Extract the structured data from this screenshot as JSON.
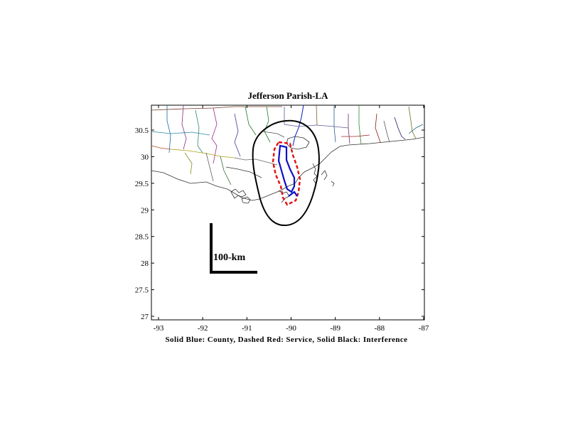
{
  "map": {
    "title": "Jefferson Parish-LA",
    "caption": "Solid Blue: County, Dashed Red: Service, Solid Black: Interference",
    "scale_label": "100-km",
    "x_ticks": [
      "-93",
      "-92",
      "-91",
      "-90",
      "-89",
      "-88",
      "-87"
    ],
    "y_ticks": [
      "30.5",
      "30",
      "29.5",
      "29",
      "28.5",
      "28",
      "27.5",
      "27"
    ],
    "colors": {
      "county": "#1010c8",
      "service": "#e01010",
      "interference": "#000000",
      "frame": "#000000"
    }
  }
}
